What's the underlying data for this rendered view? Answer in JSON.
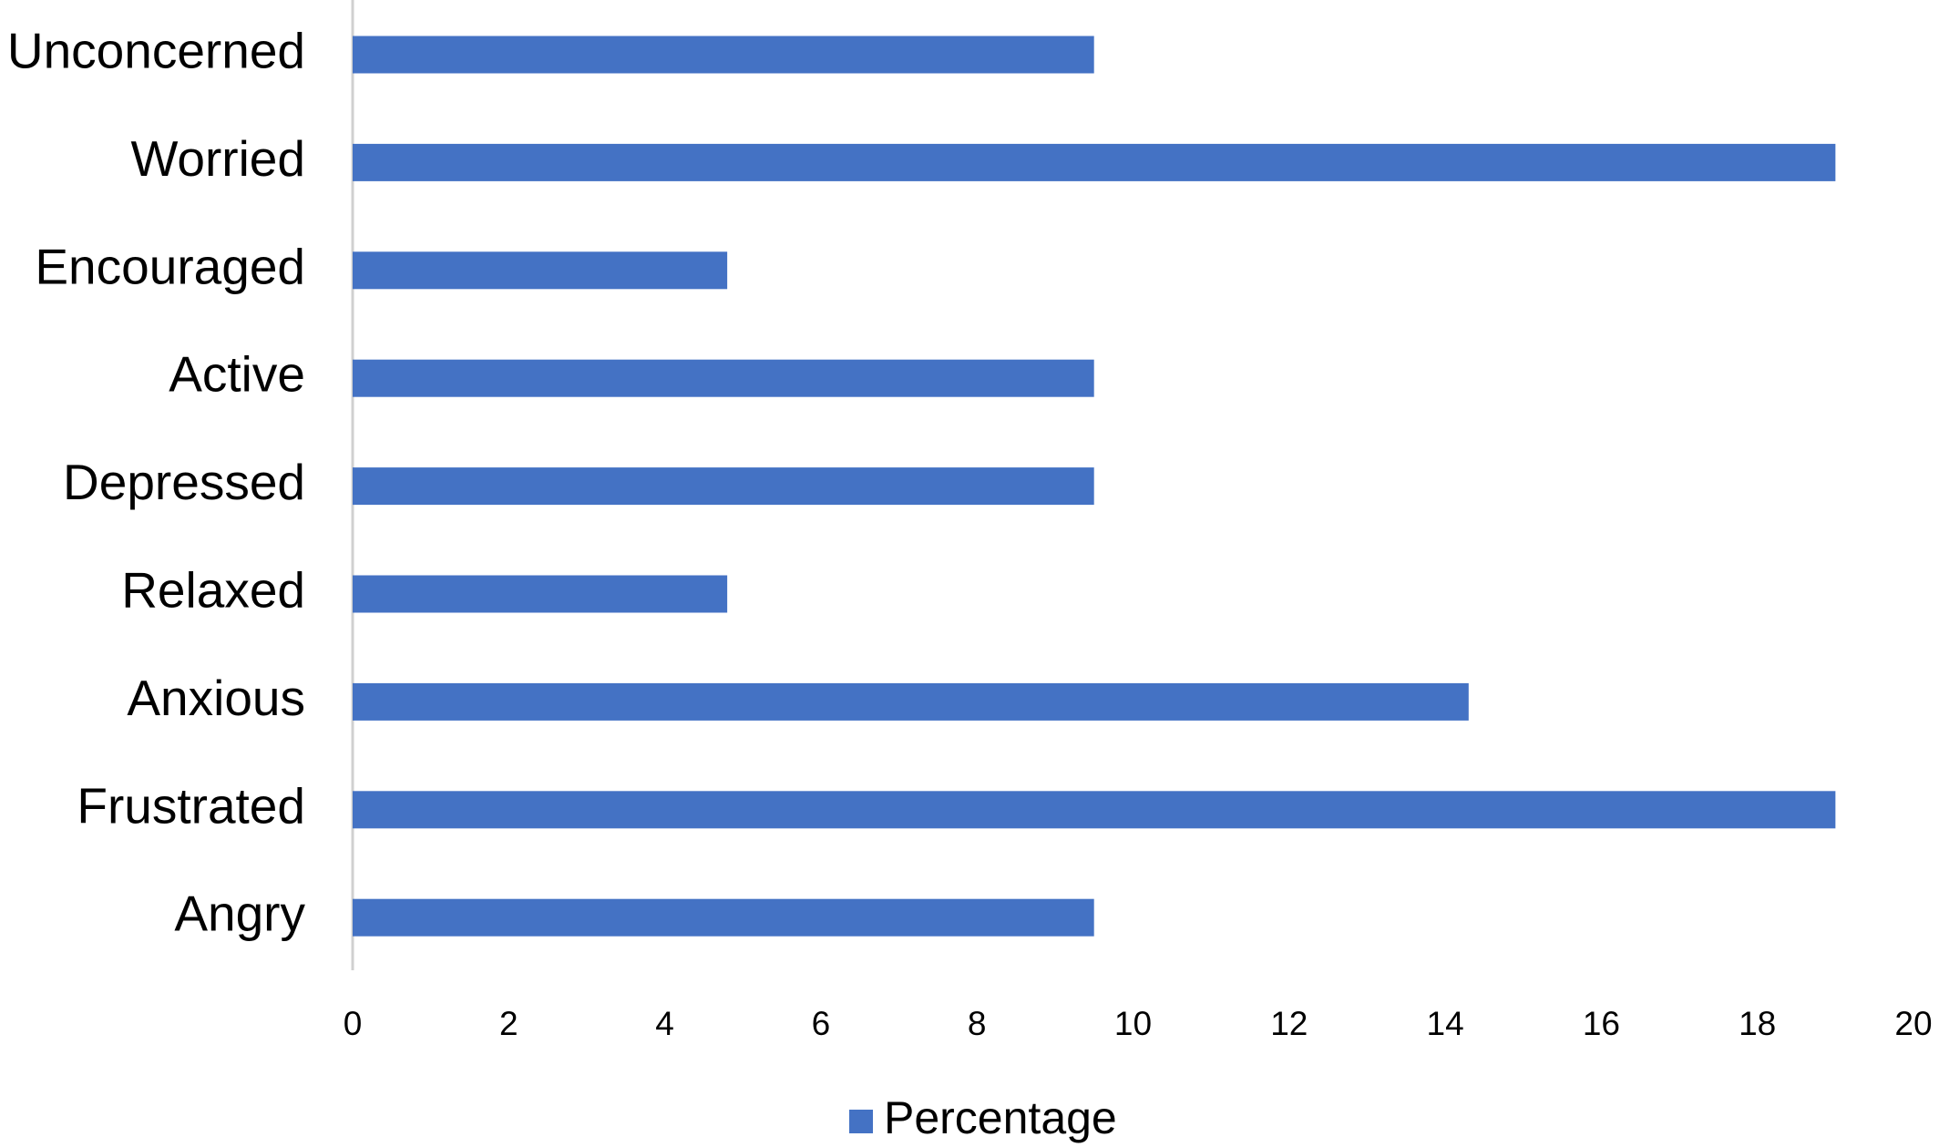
{
  "chart_data": {
    "type": "bar",
    "orientation": "horizontal",
    "categories": [
      "Unconcerned",
      "Worried",
      "Encouraged",
      "Active",
      "Depressed",
      "Relaxed",
      "Anxious",
      "Frustrated",
      "Angry"
    ],
    "series": [
      {
        "name": "Percentage",
        "color": "#4472c4",
        "values": [
          9.5,
          19,
          4.8,
          9.5,
          9.5,
          4.8,
          14.3,
          19,
          9.5
        ]
      }
    ],
    "xlim": [
      0,
      20
    ],
    "xticks": [
      0,
      2,
      4,
      6,
      8,
      10,
      12,
      14,
      16,
      18,
      20
    ],
    "grid": false,
    "legend": "bottom"
  }
}
